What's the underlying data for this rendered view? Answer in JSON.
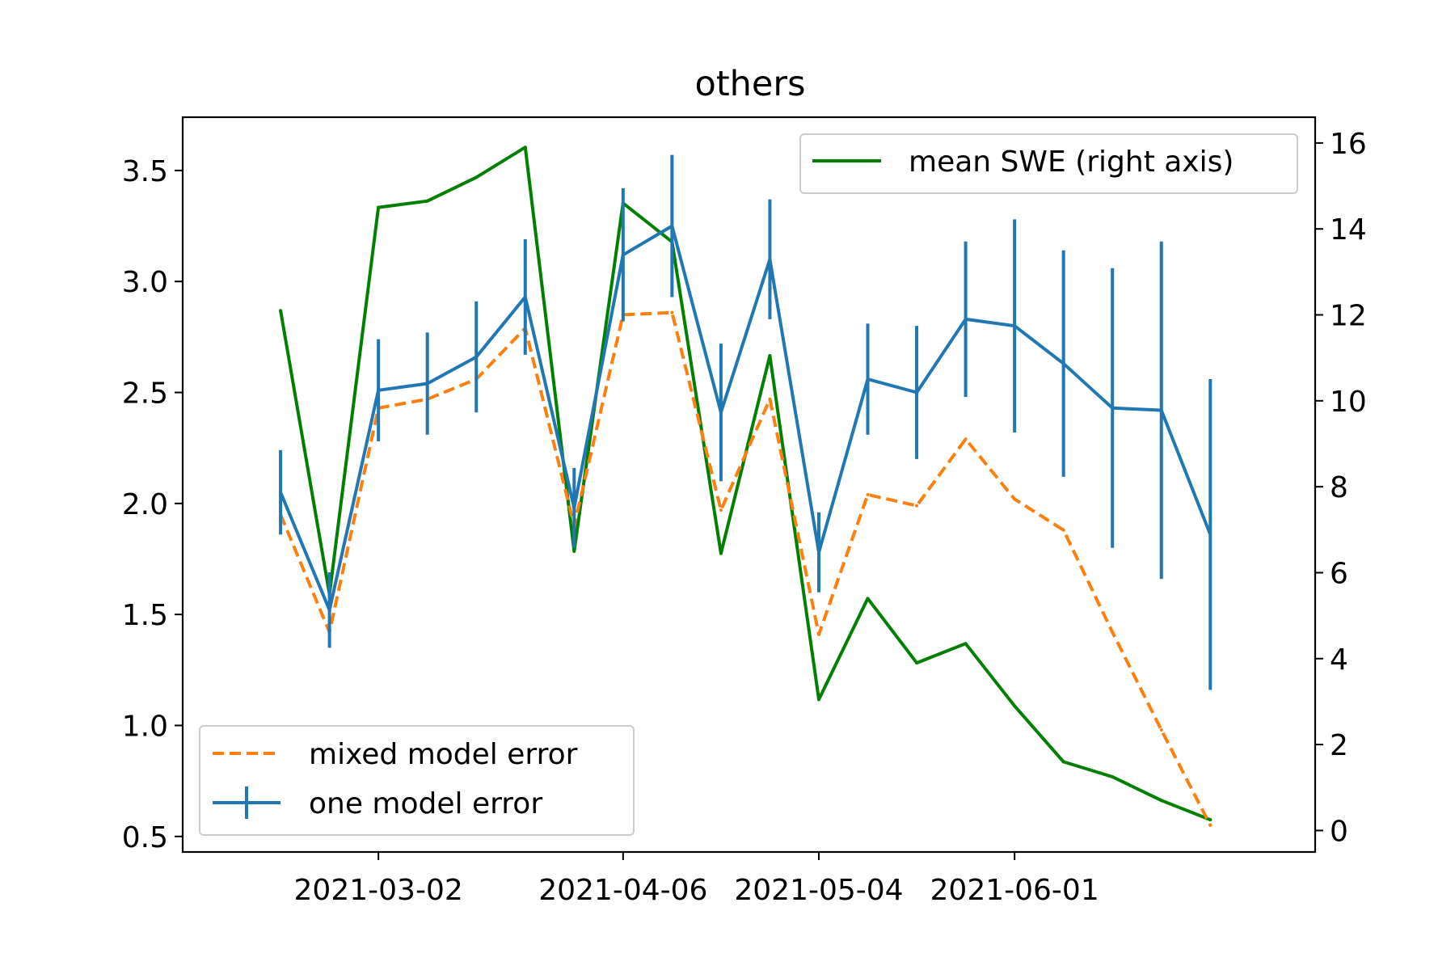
{
  "chart_data": {
    "type": "line",
    "title": "others",
    "xlabel": "",
    "ylabel": "",
    "y2label": "",
    "x_ticks": [
      "2021-03-02",
      "2021-04-06",
      "2021-05-04",
      "2021-06-01"
    ],
    "x_range": [
      "2021-02-02",
      "2021-07-14"
    ],
    "ylim": [
      0.43,
      3.74
    ],
    "yticks": [
      0.5,
      1.0,
      1.5,
      2.0,
      2.5,
      3.0,
      3.5
    ],
    "y2lim": [
      -0.5,
      16.6
    ],
    "y2ticks": [
      0,
      2,
      4,
      6,
      8,
      10,
      12,
      14,
      16
    ],
    "x": [
      "2021-02-16",
      "2021-02-23",
      "2021-03-02",
      "2021-03-09",
      "2021-03-16",
      "2021-03-23",
      "2021-03-30",
      "2021-04-06",
      "2021-04-13",
      "2021-04-20",
      "2021-04-27",
      "2021-05-04",
      "2021-05-11",
      "2021-05-18",
      "2021-05-25",
      "2021-06-01",
      "2021-06-08",
      "2021-06-15",
      "2021-06-22",
      "2021-06-29"
    ],
    "series": [
      {
        "name": "mean SWE (right axis)",
        "axis": "right",
        "color": "#008000",
        "style": "solid",
        "values": [
          12.1,
          5.5,
          14.5,
          14.65,
          15.2,
          15.9,
          6.5,
          14.6,
          13.7,
          6.45,
          11.05,
          3.05,
          5.4,
          3.9,
          4.35,
          2.9,
          1.6,
          1.25,
          0.7,
          0.25
        ]
      },
      {
        "name": "mixed model error",
        "axis": "left",
        "color": "#ff7f0e",
        "style": "dashed",
        "values": [
          1.95,
          1.42,
          2.43,
          2.47,
          2.56,
          2.79,
          1.9,
          2.85,
          2.86,
          1.97,
          2.47,
          1.41,
          2.04,
          1.99,
          2.29,
          2.02,
          1.88,
          1.42,
          0.98,
          0.55
        ]
      },
      {
        "name": "one model error",
        "axis": "left",
        "color": "#1f77b4",
        "style": "errorbar",
        "values": [
          2.05,
          1.52,
          2.51,
          2.54,
          2.66,
          2.93,
          1.98,
          3.12,
          3.25,
          2.41,
          3.1,
          1.78,
          2.56,
          2.5,
          2.83,
          2.8,
          2.63,
          2.43,
          2.42,
          1.86
        ],
        "errors": [
          0.19,
          0.17,
          0.23,
          0.23,
          0.25,
          0.26,
          0.18,
          0.3,
          0.32,
          0.31,
          0.27,
          0.18,
          0.25,
          0.3,
          0.35,
          0.48,
          0.51,
          0.63,
          0.76,
          0.7
        ]
      }
    ],
    "legends": [
      {
        "position": "top-right",
        "entries": [
          "mean SWE (right axis)"
        ]
      },
      {
        "position": "bottom-left",
        "entries": [
          "mixed model error",
          "one model error"
        ]
      }
    ]
  }
}
